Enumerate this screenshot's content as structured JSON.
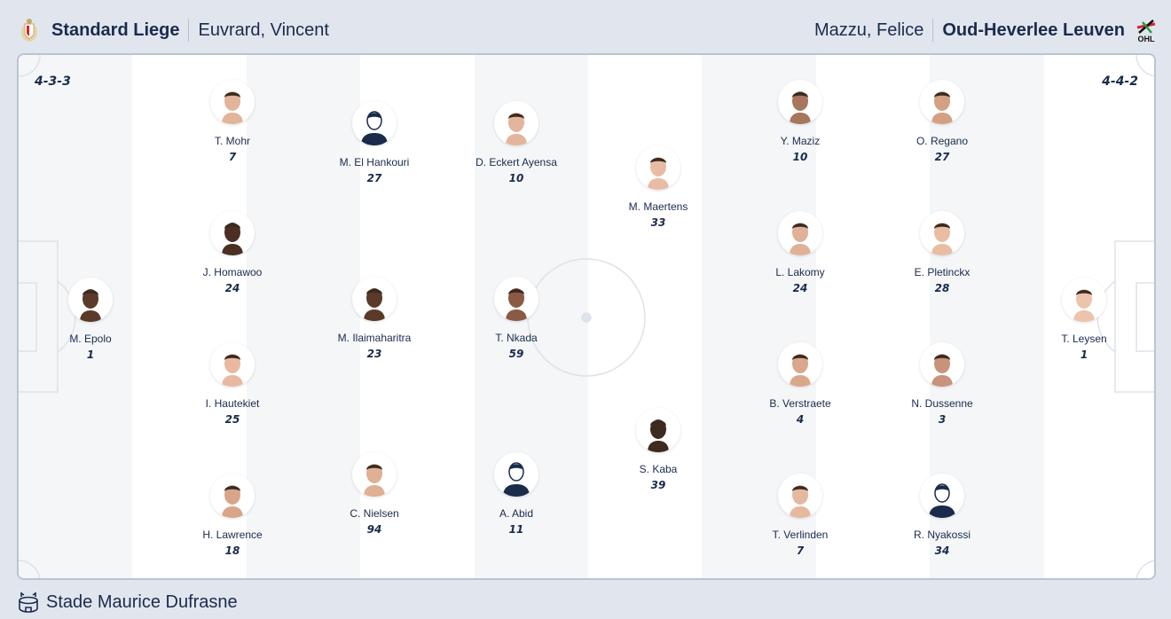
{
  "home": {
    "team": "Standard Liege",
    "coach": "Euvrard, Vincent",
    "formation": "4-3-3",
    "logo": "standard-liege-crest"
  },
  "away": {
    "team": "Oud-Heverlee Leuven",
    "coach": "Mazzu, Felice",
    "formation": "4-4-2",
    "logo": "ohl-crest"
  },
  "venue": {
    "name": "Stade Maurice Dufrasne",
    "icon": "stadium-icon"
  },
  "home_players": [
    {
      "name": "M. Epolo",
      "number": "1",
      "skin": "#5a3a28",
      "photo": true
    },
    {
      "name": "T. Mohr",
      "number": "7",
      "skin": "#e2b49a",
      "photo": true
    },
    {
      "name": "J. Homawoo",
      "number": "24",
      "skin": "#4a2f22",
      "photo": true
    },
    {
      "name": "I. Hautekiet",
      "number": "25",
      "skin": "#e8b9a0",
      "photo": true
    },
    {
      "name": "H. Lawrence",
      "number": "18",
      "skin": "#d9a58a",
      "photo": true
    },
    {
      "name": "M. El Hankouri",
      "number": "27",
      "photo": false
    },
    {
      "name": "M. Ilaimaharitra",
      "number": "23",
      "skin": "#5b3a2a",
      "photo": true
    },
    {
      "name": "C. Nielsen",
      "number": "94",
      "skin": "#dfb094",
      "photo": true
    },
    {
      "name": "D. Eckert Ayensa",
      "number": "10",
      "skin": "#e3b59c",
      "photo": true
    },
    {
      "name": "T. Nkada",
      "number": "59",
      "skin": "#8a5a44",
      "photo": true
    },
    {
      "name": "A. Abid",
      "number": "11",
      "photo": false
    },
    {
      "name": "M. Maertens",
      "number": "33",
      "skin": "#e8bca4",
      "photo": true
    },
    {
      "name": "S. Kaba",
      "number": "39",
      "skin": "#3f2a20",
      "photo": true
    }
  ],
  "away_players": [
    {
      "name": "Y. Maziz",
      "number": "10",
      "skin": "#a7765c",
      "photo": true
    },
    {
      "name": "L. Lakomy",
      "number": "24",
      "skin": "#e0b098",
      "photo": true
    },
    {
      "name": "B. Verstraete",
      "number": "4",
      "skin": "#d9a88c",
      "photo": true
    },
    {
      "name": "T. Verlinden",
      "number": "7",
      "skin": "#e6b8a0",
      "photo": true
    },
    {
      "name": "O. Regano",
      "number": "27",
      "skin": "#d4a084",
      "photo": true
    },
    {
      "name": "E. Pletinckx",
      "number": "28",
      "skin": "#e8bda3",
      "photo": true
    },
    {
      "name": "N. Dussenne",
      "number": "3",
      "skin": "#c8937a",
      "photo": true
    },
    {
      "name": "R. Nyakossi",
      "number": "34",
      "photo": false
    },
    {
      "name": "T. Leysen",
      "number": "1",
      "skin": "#ecc3ab",
      "photo": true
    }
  ],
  "colors": {
    "text": "#1a2b4c",
    "pitch_stripe": "#f4f6f8",
    "background": "#e1e6ee",
    "pitch_line": "#dde3ea"
  }
}
